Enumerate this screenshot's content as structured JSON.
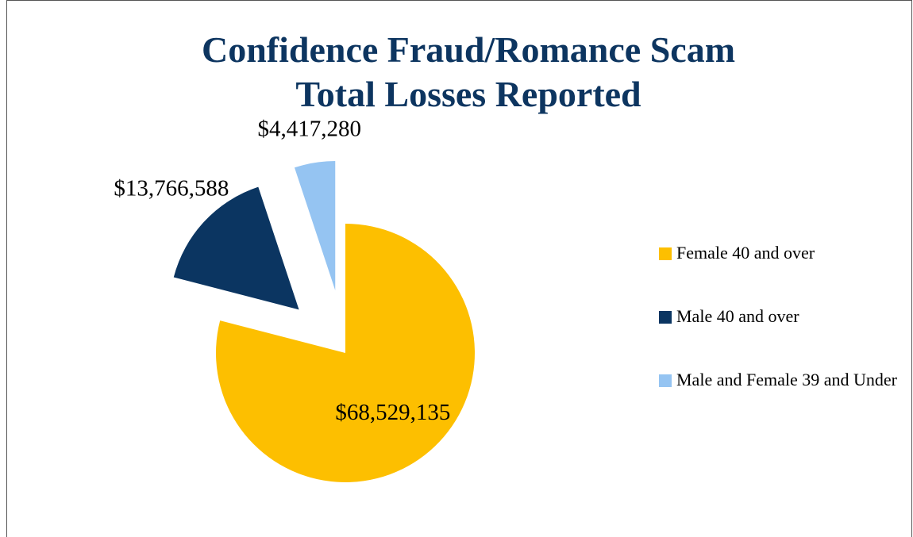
{
  "chart_data": {
    "type": "pie",
    "title": [
      "Confidence Fraud/Romance Scam",
      "Total Losses Reported"
    ],
    "categories": [
      "Female 40 and over",
      "Male 40 and over",
      "Male and Female 39 and Under"
    ],
    "values": [
      68529135,
      13766588,
      4417280
    ],
    "value_labels": [
      "$68,529,135",
      "$13,766,588",
      "$4,417,280"
    ],
    "colors": [
      "#fdbf00",
      "#0b3561",
      "#95c4f2"
    ],
    "legend": "right"
  }
}
